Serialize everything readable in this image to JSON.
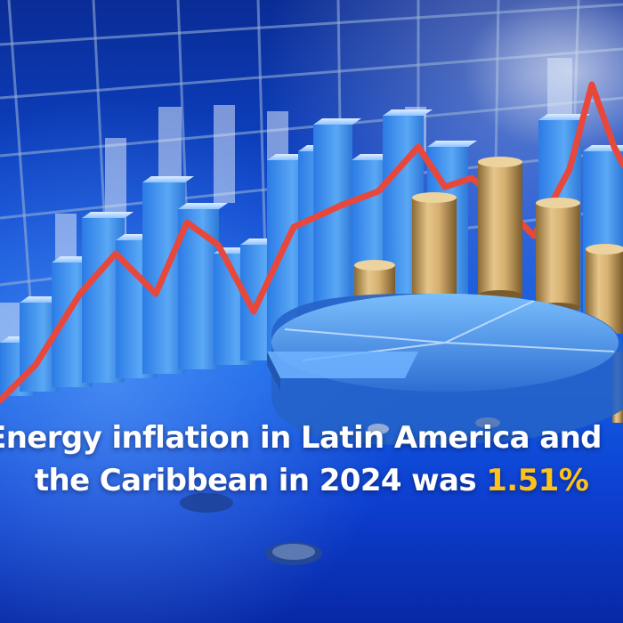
{
  "caption": {
    "line1": "Energy inflation in Latin America and",
    "line2_prefix": "the Caribbean in 2024 was ",
    "line2_value": "1.51%"
  },
  "colors": {
    "background": "#0d48d0",
    "caption_text": "#ffffff",
    "highlight": "#ffc21a",
    "trend_line": "#e8473c",
    "coins": "#d9b36a"
  },
  "illustration": {
    "elements": [
      "3d-bar-chart",
      "trend-line",
      "coin-stacks",
      "pie-chart",
      "grid-wall",
      "coins"
    ]
  }
}
